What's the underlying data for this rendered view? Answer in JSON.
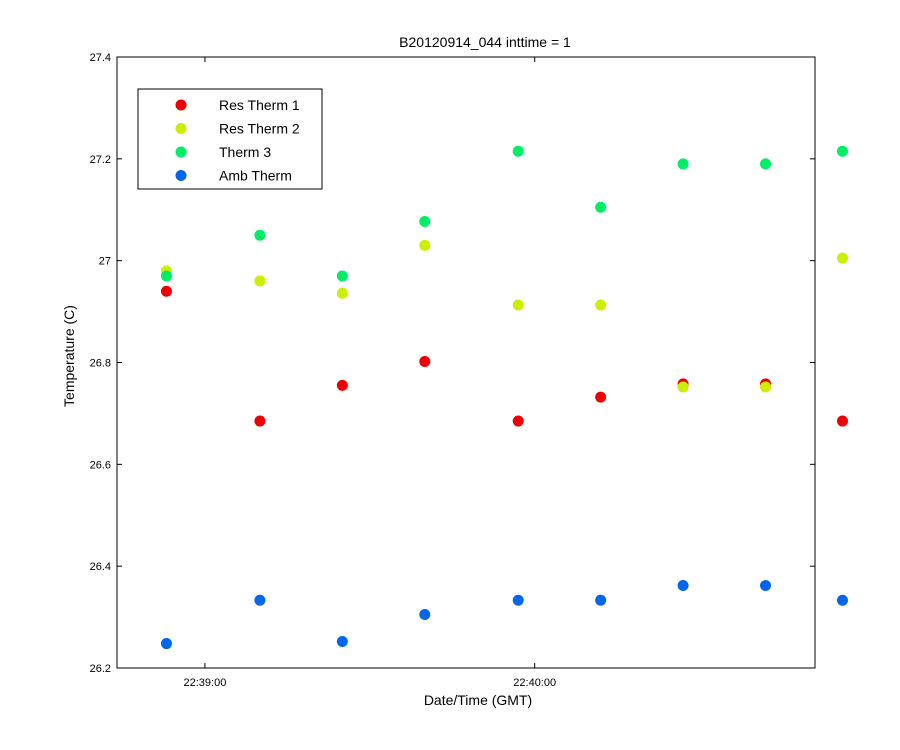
{
  "chart_data": {
    "type": "scatter",
    "title": "B20120914_044 inttime = 1",
    "xlabel": "Date/Time (GMT)",
    "ylabel": "Temperature (C)",
    "xlim": [
      "22:38:44",
      "22:40:51"
    ],
    "ylim": [
      26.2,
      27.4
    ],
    "x_ticks": [
      {
        "value": "22:39:00",
        "label": "22:39:00"
      },
      {
        "value": "22:40:00",
        "label": "22:40:00"
      }
    ],
    "y_ticks": [
      26.2,
      26.4,
      26.6,
      26.8,
      27,
      27.2,
      27.4
    ],
    "y_tick_labels": [
      "26.2",
      "26.4",
      "26.6",
      "26.8",
      "27",
      "27.2",
      "27.4"
    ],
    "grid": false,
    "legend_position": "top-left",
    "x": [
      "22:38:53",
      "22:39:10",
      "22:39:25",
      "22:39:40",
      "22:39:57",
      "22:40:12",
      "22:40:27",
      "22:40:42",
      "22:40:56"
    ],
    "series": [
      {
        "name": "Res Therm 1",
        "color": "#ee0000",
        "values": [
          26.94,
          26.685,
          26.755,
          26.802,
          26.685,
          26.732,
          26.758,
          26.758,
          26.685
        ]
      },
      {
        "name": "Res Therm 2",
        "color": "#ccee00",
        "values": [
          26.98,
          26.96,
          26.936,
          27.03,
          26.913,
          26.913,
          26.752,
          26.752,
          27.005
        ]
      },
      {
        "name": "Therm 3",
        "color": "#00ee66",
        "values": [
          26.97,
          27.05,
          26.97,
          27.077,
          27.215,
          27.105,
          27.19,
          27.19,
          27.215
        ]
      },
      {
        "name": "Amb Therm",
        "color": "#0066ee",
        "values": [
          26.248,
          26.333,
          26.252,
          26.305,
          26.333,
          26.333,
          26.362,
          26.362,
          26.333
        ]
      }
    ]
  }
}
